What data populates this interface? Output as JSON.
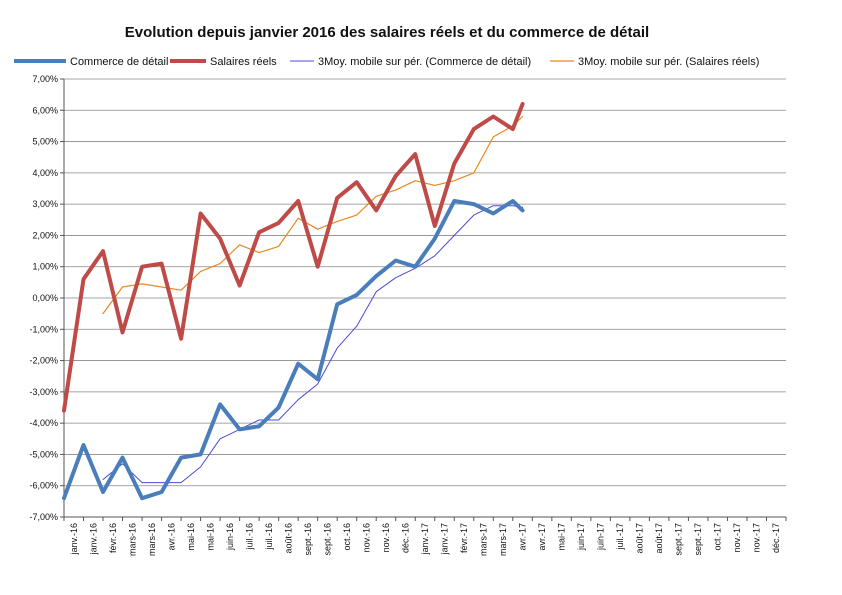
{
  "chart_data": {
    "type": "line",
    "title": "Evolution depuis janvier 2016 des salaires réels et du commerce de détail",
    "xlabel": "",
    "ylabel": "",
    "ylim": [
      -7,
      7
    ],
    "y_step": 1,
    "y_format": "percent_2dp_comma",
    "y_ticks": [
      "7,00%",
      "6,00%",
      "5,00%",
      "4,00%",
      "3,00%",
      "2,00%",
      "1,00%",
      "0,00%",
      "-1,00%",
      "-2,00%",
      "-3,00%",
      "-4,00%",
      "-5,00%",
      "-6,00%",
      "-7,00%"
    ],
    "grid": true,
    "legend_position": "top",
    "categories": [
      "janv.-16",
      "janv.-16",
      "févr.-16",
      "mars-16",
      "mars-16",
      "avr.-16",
      "mai-16",
      "mai-16",
      "juin-16",
      "juil.-16",
      "juil.-16",
      "août-16",
      "sept.-16",
      "sept.-16",
      "oct.-16",
      "nov.-16",
      "nov.-16",
      "déc.-16",
      "janv.-17",
      "janv.-17",
      "févr.-17",
      "mars-17",
      "mars-17",
      "avr.-17",
      "avr.-17",
      "mai-17",
      "juin-17",
      "juin-17",
      "juil.-17",
      "août-17",
      "août-17",
      "sept.-17",
      "sept.-17",
      "oct.-17",
      "nov.-17",
      "nov.-17",
      "déc.-17"
    ],
    "series": [
      {
        "name": "Commerce de détail",
        "color": "#4a7ebb",
        "width": 4,
        "points": [
          [
            0,
            -6.4
          ],
          [
            2,
            -4.7
          ],
          [
            4,
            -6.2
          ],
          [
            6,
            -5.1
          ],
          [
            8,
            -6.4
          ],
          [
            10,
            -6.2
          ],
          [
            12,
            -5.1
          ],
          [
            14,
            -5.0
          ],
          [
            16,
            -3.4
          ],
          [
            18,
            -4.2
          ],
          [
            20,
            -4.1
          ],
          [
            22,
            -3.5
          ],
          [
            24,
            -2.1
          ],
          [
            26,
            -2.6
          ],
          [
            28,
            -0.2
          ],
          [
            30,
            0.1
          ],
          [
            32,
            0.7
          ],
          [
            34,
            1.2
          ],
          [
            36,
            1.0
          ],
          [
            38,
            1.9
          ],
          [
            40,
            3.1
          ],
          [
            42,
            3.0
          ],
          [
            44,
            2.7
          ],
          [
            46,
            3.1
          ],
          [
            47,
            2.8
          ]
        ]
      },
      {
        "name": "Salaires réels",
        "color": "#be4b48",
        "width": 4,
        "points": [
          [
            0,
            -3.6
          ],
          [
            2,
            0.6
          ],
          [
            4,
            1.5
          ],
          [
            6,
            -1.1
          ],
          [
            8,
            1.0
          ],
          [
            10,
            1.1
          ],
          [
            12,
            -1.3
          ],
          [
            14,
            2.7
          ],
          [
            16,
            1.9
          ],
          [
            18,
            0.4
          ],
          [
            20,
            2.1
          ],
          [
            22,
            2.4
          ],
          [
            24,
            3.1
          ],
          [
            26,
            1.0
          ],
          [
            28,
            3.2
          ],
          [
            30,
            3.7
          ],
          [
            32,
            2.8
          ],
          [
            34,
            3.9
          ],
          [
            36,
            4.6
          ],
          [
            38,
            2.3
          ],
          [
            40,
            4.3
          ],
          [
            42,
            5.4
          ],
          [
            44,
            5.8
          ],
          [
            46,
            5.4
          ],
          [
            47,
            6.2
          ]
        ]
      },
      {
        "name": "3Moy. mobile sur pér. (Commerce de détail)",
        "color": "#4b4bd6",
        "width": 1,
        "points": [
          [
            4,
            -5.8
          ],
          [
            6,
            -5.3
          ],
          [
            8,
            -5.9
          ],
          [
            10,
            -5.9
          ],
          [
            12,
            -5.9
          ],
          [
            14,
            -5.4
          ],
          [
            16,
            -4.5
          ],
          [
            18,
            -4.2
          ],
          [
            20,
            -3.9
          ],
          [
            22,
            -3.9
          ],
          [
            24,
            -3.25
          ],
          [
            26,
            -2.75
          ],
          [
            28,
            -1.6
          ],
          [
            30,
            -0.9
          ],
          [
            32,
            0.2
          ],
          [
            34,
            0.65
          ],
          [
            36,
            0.95
          ],
          [
            38,
            1.35
          ],
          [
            40,
            2.0
          ],
          [
            42,
            2.65
          ],
          [
            44,
            2.95
          ],
          [
            46,
            2.95
          ],
          [
            47,
            2.9
          ]
        ]
      },
      {
        "name": "3Moy. mobile sur pér. (Salaires réels)",
        "color": "#e8891f",
        "width": 1.2,
        "points": [
          [
            4,
            -0.5
          ],
          [
            6,
            0.35
          ],
          [
            8,
            0.45
          ],
          [
            10,
            0.35
          ],
          [
            12,
            0.25
          ],
          [
            14,
            0.85
          ],
          [
            16,
            1.1
          ],
          [
            18,
            1.7
          ],
          [
            20,
            1.45
          ],
          [
            22,
            1.65
          ],
          [
            24,
            2.55
          ],
          [
            26,
            2.2
          ],
          [
            28,
            2.45
          ],
          [
            30,
            2.65
          ],
          [
            32,
            3.25
          ],
          [
            34,
            3.45
          ],
          [
            36,
            3.75
          ],
          [
            38,
            3.6
          ],
          [
            40,
            3.75
          ],
          [
            42,
            4.0
          ],
          [
            44,
            5.15
          ],
          [
            46,
            5.5
          ],
          [
            47,
            5.8
          ]
        ]
      }
    ]
  }
}
